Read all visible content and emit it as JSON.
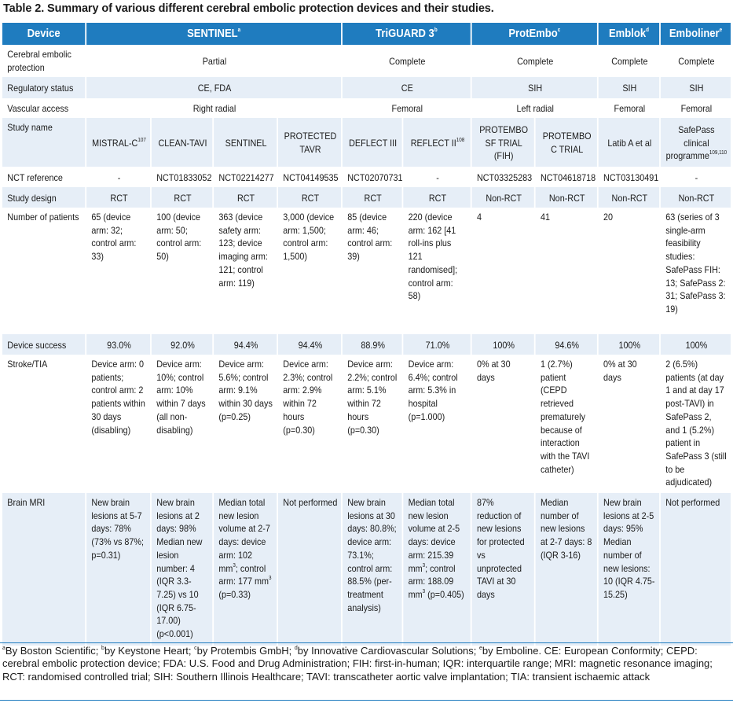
{
  "title": "Table 2. Summary of various different cerebral embolic protection devices and their studies.",
  "header": {
    "device": "Device",
    "sentinel": "SENTINEL",
    "sentinel_sup": "a",
    "triguard": "TriGUARD 3",
    "triguard_sup": "b",
    "protembo": "ProtEmbo",
    "protembo_sup": "c",
    "emblok": "Emblok",
    "emblok_sup": "d",
    "emboliner": "Emboliner",
    "emboliner_sup": "e"
  },
  "rows": {
    "protection": {
      "label": "Cerebral embolic protection",
      "sentinel": "Partial",
      "triguard": "Complete",
      "protembo": "Complete",
      "emblok": "Complete",
      "emboliner": "Complete"
    },
    "regulatory": {
      "label": "Regulatory status",
      "sentinel": "CE, FDA",
      "triguard": "CE",
      "protembo": "SIH",
      "emblok": "SIH",
      "emboliner": "SIH"
    },
    "access": {
      "label": "Vascular access",
      "sentinel": "Right radial",
      "triguard": "Femoral",
      "protembo": "Left radial",
      "emblok": "Femoral",
      "emboliner": "Femoral"
    },
    "study": {
      "label": "Study name",
      "c1": "MISTRAL-C",
      "c1_sup": "107",
      "c2": "CLEAN-TAVI",
      "c3": "SENTINEL",
      "c4": "PROTECTED TAVR",
      "c5": "DEFLECT III",
      "c6": "REFLECT II",
      "c6_sup": "108",
      "c7": "PROTEMBO SF TRIAL (FIH)",
      "c8": "PROTEMBO C TRIAL",
      "c9": "Latib A et al",
      "c10": "SafePass clinical programme",
      "c10_sup": "109,110"
    },
    "nct": {
      "label": "NCT reference",
      "c1": "-",
      "c2": "NCT01833052",
      "c3": "NCT02214277",
      "c4": "NCT04149535",
      "c5": "NCT02070731",
      "c6": "-",
      "c7": "NCT03325283",
      "c8": "NCT04618718",
      "c9": "NCT03130491",
      "c10": "-"
    },
    "design": {
      "label": "Study design",
      "c1": "RCT",
      "c2": "RCT",
      "c3": "RCT",
      "c4": "RCT",
      "c5": "RCT",
      "c6": "RCT",
      "c7": "Non-RCT",
      "c8": "Non-RCT",
      "c9": "Non-RCT",
      "c10": "Non-RCT"
    },
    "patients": {
      "label": "Number of patients",
      "c1": "65 (device arm: 32; control arm: 33)",
      "c2": "100 (device arm: 50; control arm: 50)",
      "c3": "363 (device safety arm: 123; device imaging arm: 121; control arm: 119)",
      "c4": "3,000 (device arm: 1,500; control arm: 1,500)",
      "c5": "85 (device arm: 46; control arm: 39)",
      "c6": "220 (device arm: 162 [41 roll-ins plus 121 randomised]; control arm: 58)",
      "c7": "4",
      "c8": "41",
      "c9": "20",
      "c10": "63 (series of 3 single-arm feasibility studies: SafePass FIH: 13; SafePass 2: 31; SafePass 3: 19)"
    },
    "success": {
      "label": "Device success",
      "c1": "93.0%",
      "c2": "92.0%",
      "c3": "94.4%",
      "c4": "94.4%",
      "c5": "88.9%",
      "c6": "71.0%",
      "c7": "100%",
      "c8": "94.6%",
      "c9": "100%",
      "c10": "100%"
    },
    "stroke": {
      "label": "Stroke/TIA",
      "c1": "Device arm: 0 patients; control arm: 2 patients within 30 days (disabling)",
      "c2": "Device arm: 10%; control arm: 10% within 7 days (all non-disabling)",
      "c3": "Device arm: 5.6%; control arm: 9.1% within 30 days (p=0.25)",
      "c4": "Device arm: 2.3%; control arm: 2.9% within 72 hours (p=0.30)",
      "c5": "Device arm: 2.2%; control arm: 5.1% within 72 hours (p=0.30)",
      "c6": "Device arm: 6.4%; control arm: 5.3% in hospital (p=1.000)",
      "c7": "0% at 30 days",
      "c8": "1 (2.7%) patient (CEPD retrieved prematurely because of interaction with the TAVI catheter)",
      "c9": "0% at 30 days",
      "c10": "2 (6.5%) patients (at day 1 and at day 17 post-TAVI) in SafePass 2, and 1 (5.2%) patient in SafePass 3 (still to be adjudicated)"
    },
    "mri": {
      "label": "Brain MRI",
      "c1": "New brain lesions at 5-7 days: 78% (73% vs 87%; p=0.31)",
      "c2": "New brain lesions at 2 days: 98% Median new lesion number: 4 (IQR 3.3-7.25) vs 10 (IQR 6.75-17.00) (p<0.001)",
      "c3_a": "Median total new lesion volume at 2-7 days: device arm: 102 mm",
      "c3_sup1": "3",
      "c3_b": "; control arm: 177 mm",
      "c3_sup2": "3",
      "c3_c": " (p=0.33)",
      "c4": "Not performed",
      "c5": "New brain lesions at 30 days: 80.8%; device arm: 73.1%; control arm: 88.5% (per-treatment analysis)",
      "c6_a": "Median total new lesion volume at 2-5 days: device arm: 215.39 mm",
      "c6_sup1": "3",
      "c6_b": "; control arm: 188.09 mm",
      "c6_sup2": "3",
      "c6_c": " (p=0.405)",
      "c7": "87% reduction of new lesions for protected vs unprotected TAVI at 30 days",
      "c8": "Median number of new lesions at 2-7 days: 8 (IQR 3-16)",
      "c9": "New brain lesions at 2-5 days: 95% Median number of new lesions: 10 (IQR 4.75-15.25)",
      "c10": "Not performed"
    }
  },
  "footnote": {
    "s_a": "a",
    "t_a": "By Boston Scientific; ",
    "s_b": "b",
    "t_b": "by Keystone Heart; ",
    "s_c": "c",
    "t_c": "by Protembis GmbH; ",
    "s_d": "d",
    "t_d": "by Innovative Cardiovascular Solutions; ",
    "s_e": "e",
    "t_e": "by Emboline. CE: European Conformity; CEPD: cerebral embolic protection device; FDA: U.S. Food and Drug Administration; FIH: first-in-human; IQR: interquartile range; MRI: magnetic resonance imaging; RCT: randomised controlled trial; SIH: Southern Illinois Healthcare; TAVI: transcatheter aortic valve implantation; TIA: transient ischaemic attack"
  },
  "colors": {
    "header_bg": "#1f7cbf",
    "row_alt_bg": "#e6eef7",
    "header_text": "#ffffff"
  }
}
